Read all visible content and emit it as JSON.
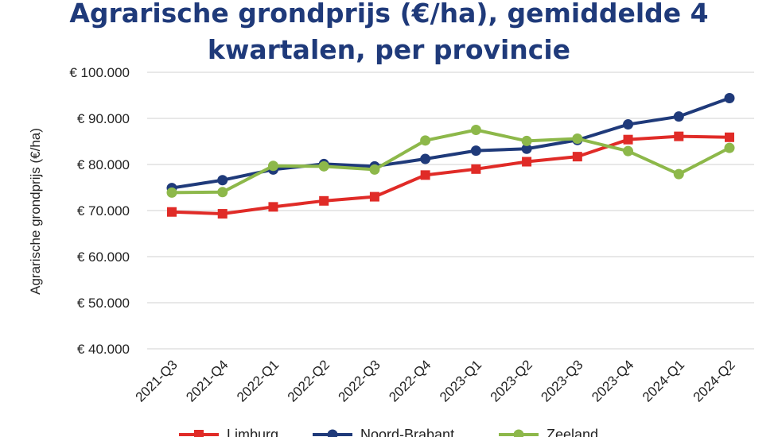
{
  "chart_data": {
    "type": "line",
    "title": "Agrarische grondprijs (€/ha), gemiddelde 4 kwartalen, per provincie",
    "xlabel": "",
    "ylabel": "Agrarische grondprijs (€/ha)",
    "ylim": [
      40000,
      100000
    ],
    "yticks": [
      40000,
      50000,
      60000,
      70000,
      80000,
      90000,
      100000
    ],
    "ytick_labels": [
      "€ 40.000",
      "€ 50.000",
      "€ 60.000",
      "€ 70.000",
      "€ 80.000",
      "€ 90.000",
      "€ 100.000"
    ],
    "grid": true,
    "legend_position": "bottom",
    "categories": [
      "2021-Q3",
      "2021-Q4",
      "2022-Q1",
      "2022-Q2",
      "2022-Q3",
      "2022-Q4",
      "2023-Q1",
      "2023-Q2",
      "2023-Q3",
      "2023-Q4",
      "2024-Q1",
      "2024-Q2"
    ],
    "series": [
      {
        "name": "Limburg",
        "color": "#e02b27",
        "marker": "square",
        "values": [
          69700,
          69300,
          70800,
          72100,
          73000,
          77700,
          79000,
          80600,
          81700,
          85400,
          86100,
          85900
        ]
      },
      {
        "name": "Noord-Brabant",
        "color": "#1f3a7a",
        "marker": "circle",
        "values": [
          74900,
          76600,
          78900,
          80100,
          79600,
          81200,
          83000,
          83400,
          85300,
          88700,
          90400,
          94400
        ]
      },
      {
        "name": "Zeeland",
        "color": "#8db84a",
        "marker": "circle",
        "values": [
          73900,
          74000,
          79700,
          79600,
          78900,
          85200,
          87500,
          85100,
          85600,
          82900,
          77900,
          83600
        ]
      }
    ]
  }
}
